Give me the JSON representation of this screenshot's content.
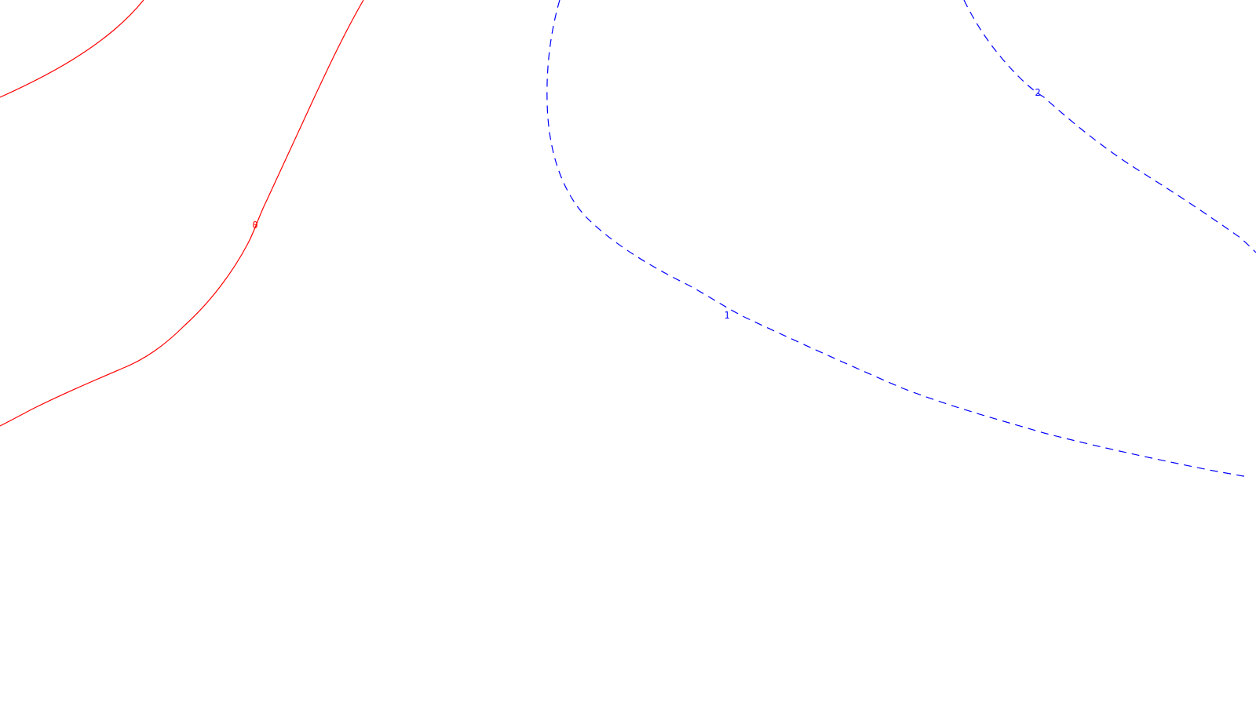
{
  "map": {
    "background_color": "#ffffff",
    "contours": [
      {
        "label": "0",
        "color": "#ff0000",
        "style": "solid"
      },
      {
        "label": "1",
        "color": "#0000ff",
        "style": "dashed"
      },
      {
        "label": "2",
        "color": "#0000ff",
        "style": "dashed"
      }
    ]
  }
}
